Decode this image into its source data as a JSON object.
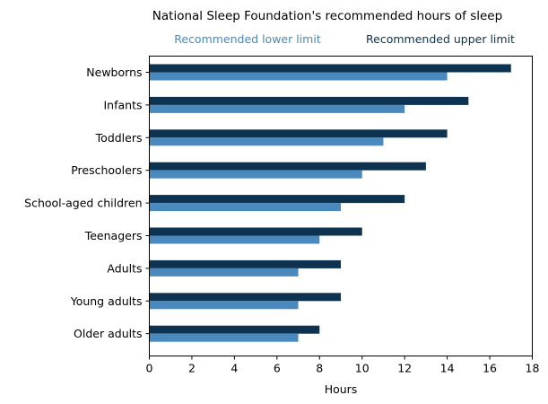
{
  "chart_data": {
    "type": "bar",
    "orientation": "horizontal",
    "title": "National Sleep Foundation's recommended hours of sleep",
    "xlabel": "Hours",
    "ylabel": "",
    "xlim": [
      0,
      18
    ],
    "xticks": [
      0,
      2,
      4,
      6,
      8,
      10,
      12,
      14,
      16,
      18
    ],
    "grid": false,
    "legend_placement": "top",
    "categories": [
      "Newborns",
      "Infants",
      "Toddlers",
      "Preschoolers",
      "School-aged children",
      "Teenagers",
      "Adults",
      "Young adults",
      "Older adults"
    ],
    "series": [
      {
        "name": "Recommended upper limit",
        "color": "#0d3350",
        "values": [
          17,
          15,
          14,
          13,
          12,
          10,
          9,
          9,
          8
        ]
      },
      {
        "name": "Recommended lower limit",
        "color": "#4a89bd",
        "values": [
          14,
          12,
          11,
          10,
          9,
          8,
          7,
          7,
          7
        ]
      }
    ]
  }
}
